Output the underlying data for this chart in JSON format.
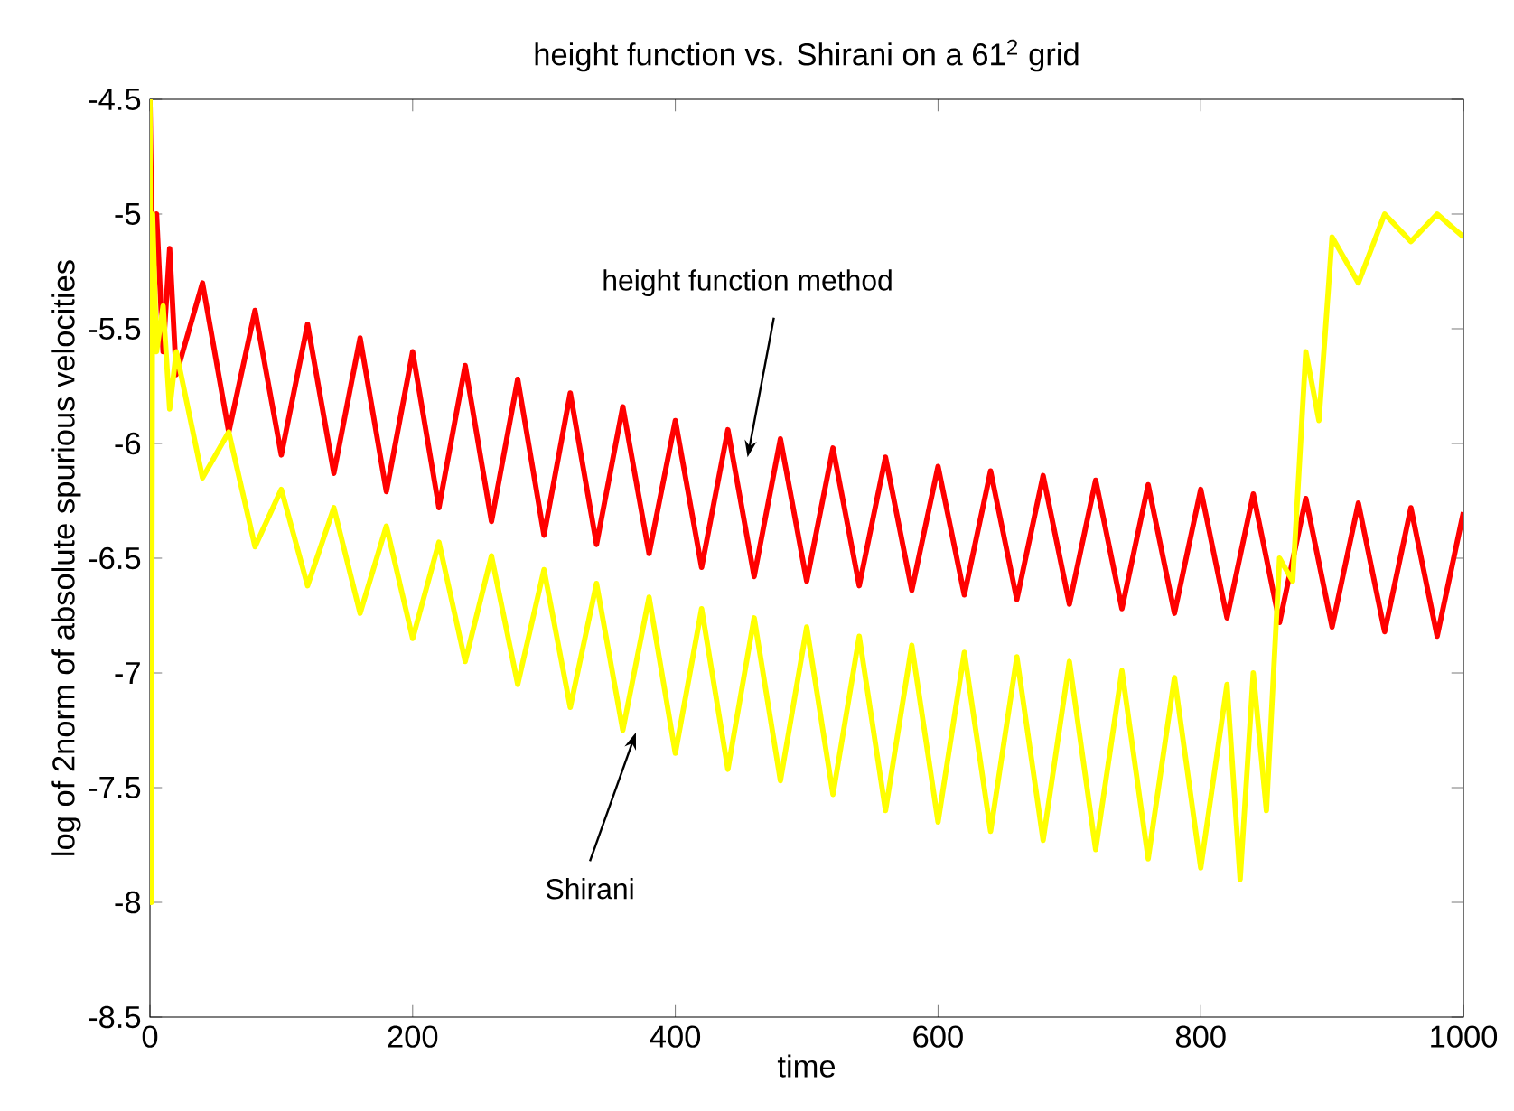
{
  "chart_data": {
    "type": "line",
    "title": "height function vs. Shirani on a 61$^{2}$ grid",
    "xlabel": "time",
    "ylabel": "log of 2norm of absolute spurious velocities",
    "xlim": [
      0,
      1000
    ],
    "ylim": [
      -8.5,
      -4.5
    ],
    "xticks": [
      0,
      200,
      400,
      600,
      800,
      1000
    ],
    "yticks": [
      -8.5,
      -8,
      -7.5,
      -7,
      -6.5,
      -6,
      -5.5,
      -5,
      -4.5
    ],
    "grid": false,
    "marker": "none",
    "line_style": "solid",
    "annotations": [
      "height function method",
      "Shirani"
    ],
    "series": [
      {
        "color": "#ff0000",
        "x": [
          0,
          2,
          5,
          10,
          15,
          20,
          40,
          60,
          80,
          100,
          120,
          140,
          160,
          180,
          200,
          220,
          240,
          260,
          280,
          300,
          320,
          340,
          360,
          380,
          400,
          420,
          440,
          460,
          480,
          500,
          520,
          540,
          560,
          580,
          600,
          620,
          640,
          660,
          680,
          700,
          720,
          740,
          760,
          780,
          800,
          820,
          840,
          860,
          880,
          900,
          920,
          940,
          960,
          980,
          1000
        ],
        "values": [
          -4.5,
          -5.3,
          -5.0,
          -5.6,
          -5.15,
          -5.7,
          -5.3,
          -5.95,
          -5.42,
          -6.05,
          -5.48,
          -6.13,
          -5.54,
          -6.21,
          -5.6,
          -6.28,
          -5.66,
          -6.34,
          -5.72,
          -6.4,
          -5.78,
          -6.44,
          -5.84,
          -6.48,
          -5.9,
          -6.54,
          -5.94,
          -6.58,
          -5.98,
          -6.6,
          -6.02,
          -6.62,
          -6.06,
          -6.64,
          -6.1,
          -6.66,
          -6.12,
          -6.68,
          -6.14,
          -6.7,
          -6.16,
          -6.72,
          -6.18,
          -6.74,
          -6.2,
          -6.76,
          -6.22,
          -6.78,
          -6.24,
          -6.8,
          -6.26,
          -6.82,
          -6.28,
          -6.84,
          -6.3
        ]
      },
      {
        "color": "#ffff00",
        "x": [
          0,
          1,
          2,
          5,
          10,
          15,
          20,
          40,
          60,
          80,
          100,
          120,
          140,
          160,
          180,
          200,
          220,
          240,
          260,
          280,
          300,
          320,
          340,
          360,
          380,
          400,
          420,
          440,
          460,
          480,
          500,
          520,
          540,
          560,
          580,
          600,
          620,
          640,
          660,
          680,
          700,
          720,
          740,
          760,
          780,
          800,
          820,
          830,
          840,
          850,
          860,
          870,
          880,
          890,
          900,
          920,
          940,
          960,
          980,
          1000
        ],
        "values": [
          -4.5,
          -8.0,
          -5.0,
          -5.6,
          -5.4,
          -5.85,
          -5.6,
          -6.15,
          -5.95,
          -6.45,
          -6.2,
          -6.62,
          -6.28,
          -6.74,
          -6.36,
          -6.85,
          -6.43,
          -6.95,
          -6.49,
          -7.05,
          -6.55,
          -7.15,
          -6.61,
          -7.25,
          -6.67,
          -7.35,
          -6.72,
          -7.42,
          -6.76,
          -7.47,
          -6.8,
          -7.53,
          -6.84,
          -7.6,
          -6.88,
          -7.65,
          -6.91,
          -7.69,
          -6.93,
          -7.73,
          -6.95,
          -7.77,
          -6.99,
          -7.81,
          -7.02,
          -7.85,
          -7.05,
          -7.9,
          -7.0,
          -7.6,
          -6.5,
          -6.6,
          -5.6,
          -5.9,
          -5.1,
          -5.3,
          -5.0,
          -5.12,
          -5.0,
          -5.1
        ]
      }
    ]
  }
}
